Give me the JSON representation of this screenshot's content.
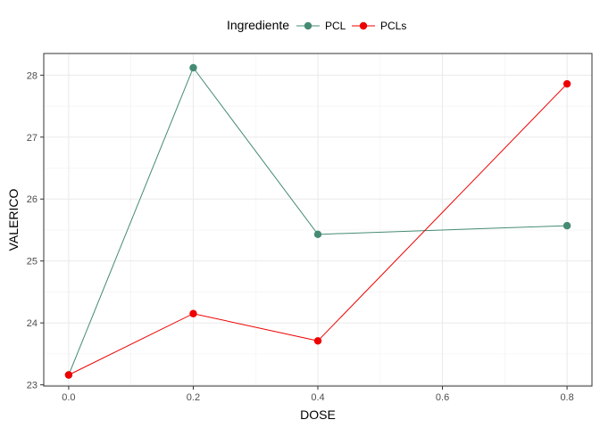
{
  "chart_data": {
    "type": "line",
    "xlabel": "DOSE",
    "ylabel": "VALERICO",
    "xlim": [
      -0.04,
      0.84
    ],
    "ylim": [
      22.98,
      28.35
    ],
    "x_ticks": [
      0.0,
      0.2,
      0.4,
      0.6,
      0.8
    ],
    "x_tick_labels": [
      "0.0",
      "0.2",
      "0.4",
      "0.6",
      "0.8"
    ],
    "y_ticks": [
      23,
      24,
      25,
      26,
      27,
      28
    ],
    "y_tick_labels": [
      "23",
      "24",
      "25",
      "26",
      "27",
      "28"
    ],
    "grid": true,
    "legend": {
      "position": "top",
      "title": "Ingrediente",
      "entries": [
        "PCL",
        "PCLs"
      ]
    },
    "series": [
      {
        "name": "PCL",
        "color": "#458b74",
        "x": [
          0.0,
          0.2,
          0.4,
          0.8
        ],
        "y": [
          23.16,
          28.12,
          25.43,
          25.57
        ]
      },
      {
        "name": "PCLs",
        "color": "#ee0000",
        "x": [
          0.0,
          0.2,
          0.4,
          0.8
        ],
        "y": [
          23.16,
          24.15,
          23.71,
          27.86
        ]
      }
    ]
  }
}
